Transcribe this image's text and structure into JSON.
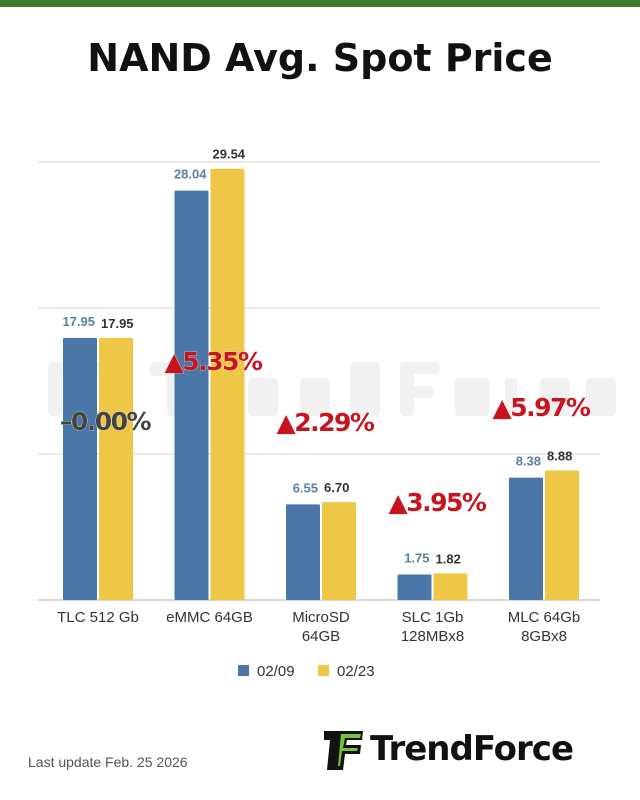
{
  "title": "NAND Avg. Spot Price",
  "footer": "Last update Feb. 25  2026",
  "logo_text": "TrendForce",
  "chart_data": {
    "type": "bar",
    "categories": [
      [
        "TLC 512 Gb"
      ],
      [
        "eMMC 64GB"
      ],
      [
        "MicroSD",
        "64GB"
      ],
      [
        "SLC 1Gb",
        "128MBx8"
      ],
      [
        "MLC 64Gb",
        "8GBx8"
      ]
    ],
    "series": [
      {
        "name": "02/09",
        "color": "#4a76a8",
        "values": [
          17.95,
          28.04,
          6.55,
          1.75,
          8.38
        ]
      },
      {
        "name": "02/23",
        "color": "#efc747",
        "values": [
          17.95,
          29.54,
          6.7,
          1.82,
          8.88
        ]
      }
    ],
    "changes": [
      "–0.00%",
      "▲5.35%",
      "▲2.29%",
      "▲3.95%",
      "▲5.97%"
    ],
    "change_colors": [
      "#444444",
      "#c8141e",
      "#c8141e",
      "#c8141e",
      "#c8141e"
    ],
    "ylim": [
      0,
      30
    ],
    "grid": true,
    "legend": "bottom",
    "watermark": "TrendForce"
  }
}
